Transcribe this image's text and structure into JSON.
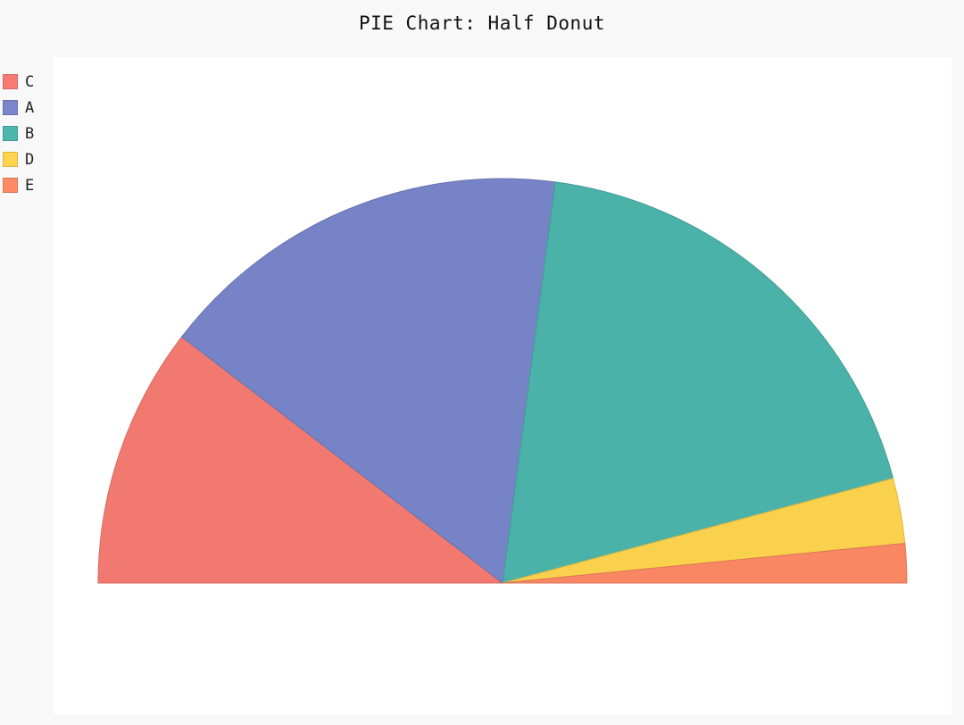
{
  "chart_data": {
    "type": "pie",
    "variant": "half-donut",
    "title": "PIE Chart: Half Donut",
    "slices": [
      {
        "label": "C",
        "value": 20,
        "color": "#f77b72"
      },
      {
        "label": "A",
        "value": 32,
        "color": "#7986cb"
      },
      {
        "label": "B",
        "value": 36,
        "color": "#4db6ac"
      },
      {
        "label": "D",
        "value": 5,
        "color": "#ffd54f"
      },
      {
        "label": "E",
        "value": 3,
        "color": "#ff8a65"
      }
    ],
    "legend_position": "top-left"
  }
}
